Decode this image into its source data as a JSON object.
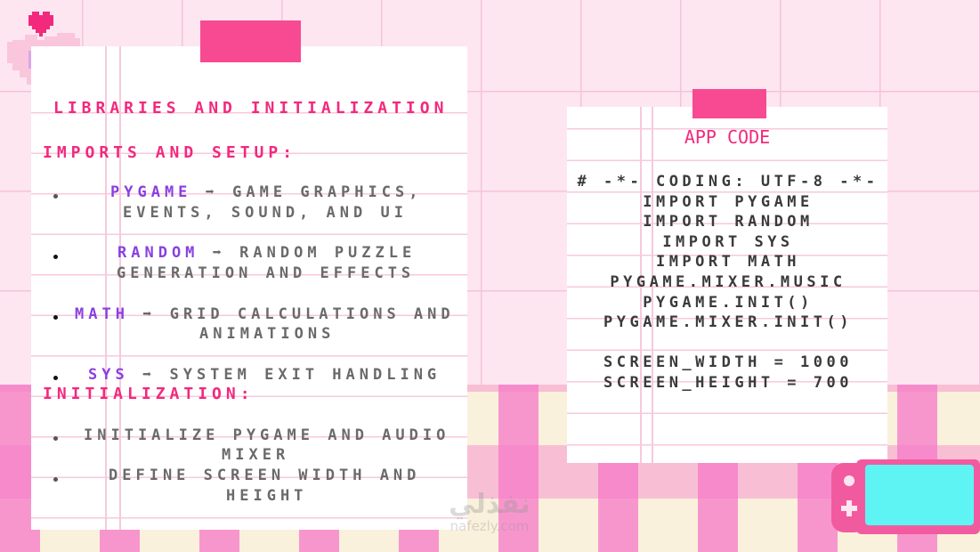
{
  "left_card": {
    "title": "LIBRARIES AND INITIALIZATION",
    "section1": "IMPORTS AND SETUP:",
    "imports": [
      {
        "name": "PYGAME",
        "arrow": "➡",
        "desc1": "GAME GRAPHICS,",
        "desc2": "EVENTS, SOUND, AND UI"
      },
      {
        "name": "RANDOM",
        "arrow": "➡",
        "desc1": "RANDOM PUZZLE",
        "desc2": "GENERATION AND EFFECTS"
      },
      {
        "name": "MATH",
        "arrow": "➡",
        "desc1": "GRID CALCULATIONS AND",
        "desc2": "ANIMATIONS"
      },
      {
        "name": "SYS",
        "arrow": "➡",
        "desc1": "SYSTEM EXIT HANDLING"
      }
    ],
    "section2": "INITIALIZATION:",
    "init": [
      {
        "line1": "INITIALIZE PYGAME AND AUDIO",
        "line2": "MIXER"
      },
      {
        "line1": "DEFINE SCREEN WIDTH AND",
        "line2": "HEIGHT"
      }
    ]
  },
  "right_card": {
    "title": "APP CODE",
    "code": [
      "# -*- CODING: UTF-8 -*-",
      "IMPORT PYGAME",
      "IMPORT RANDOM",
      "IMPORT SYS",
      "IMPORT MATH",
      "PYGAME.MIXER.MUSIC",
      "PYGAME.INIT()",
      "PYGAME.MIXER.INIT()",
      "",
      "SCREEN_WIDTH = 1000",
      "SCREEN_HEIGHT = 700"
    ]
  },
  "watermark": {
    "arabic": "نفذلي",
    "latin": "nafezly.com"
  },
  "colors": {
    "accent": "#f2297d",
    "keyword": "#8a3fe0",
    "tape": "#f84a92",
    "screen": "#5ef4f4"
  }
}
